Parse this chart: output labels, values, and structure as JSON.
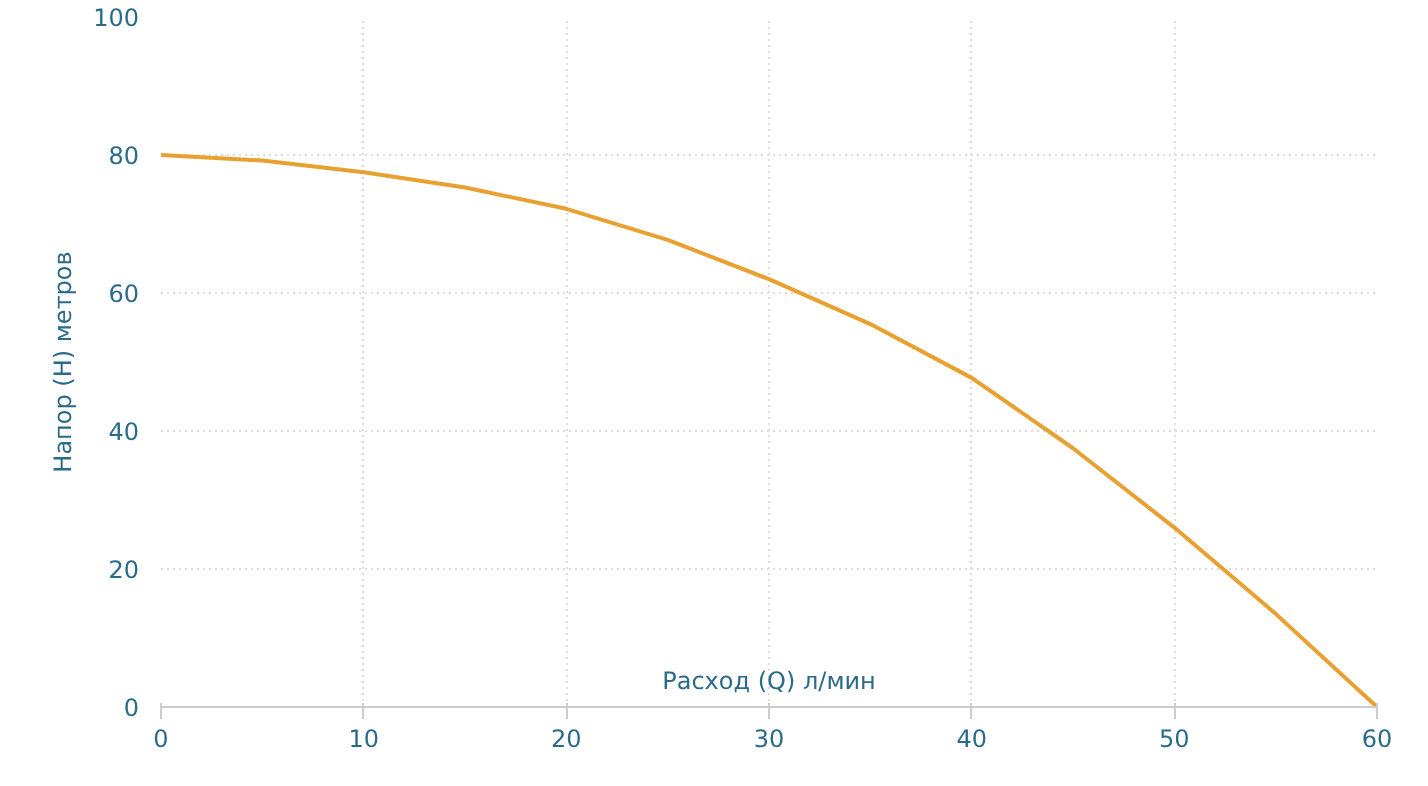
{
  "chart_data": {
    "type": "line",
    "xlabel": "Расход (Q) л/мин",
    "ylabel": "Напор (H) метров",
    "x": [
      0,
      5,
      10,
      15,
      20,
      25,
      30,
      35,
      40,
      45,
      50,
      55,
      60
    ],
    "series": [
      {
        "color": "#e8a030",
        "values": [
          80,
          79.2,
          77.5,
          75.3,
          72.2,
          67.7,
          62,
          55.5,
          47.7,
          37.5,
          26,
          13.5,
          0
        ]
      }
    ],
    "xlim": [
      0,
      60
    ],
    "ylim": [
      0,
      100
    ],
    "xticks": [
      0,
      10,
      20,
      30,
      40,
      50,
      60
    ],
    "yticks": [
      0,
      20,
      40,
      60,
      80,
      100
    ],
    "grid": true,
    "marker": "none",
    "line_style": "solid"
  }
}
